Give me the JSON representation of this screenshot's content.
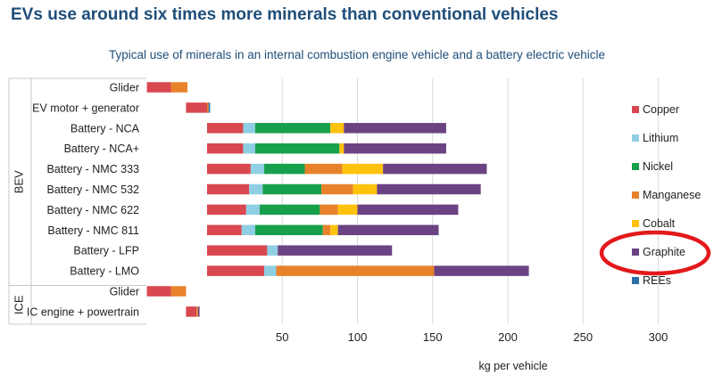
{
  "title": "EVs use around six times more minerals than conventional vehicles",
  "subtitle": "Typical use of minerals in an internal combustion engine vehicle and a battery electric vehicle",
  "chart_data": {
    "type": "bar",
    "orientation": "horizontal",
    "stacked": true,
    "title": "EVs use around six times more minerals than conventional vehicles",
    "subtitle": "Typical use of minerals in an internal combustion engine vehicle and a battery electric vehicle",
    "xlabel": "kg per vehicle",
    "ylabel": "",
    "xlim": [
      0,
      300
    ],
    "xticks": [
      50,
      100,
      150,
      200,
      250,
      300
    ],
    "grid": true,
    "legend_position": "right",
    "groups": [
      {
        "label": "BEV",
        "categories": [
          "Glider",
          "EV motor + generator",
          "Battery - NCA",
          "Battery - NCA+",
          "Battery - NMC 333",
          "Battery - NMC 532",
          "Battery - NMC 622",
          "Battery - NMC 811",
          "Battery - LFP",
          "Battery - LMO"
        ]
      },
      {
        "label": "ICE",
        "categories": [
          "Glider",
          "IC engine + powertrain"
        ]
      }
    ],
    "categories": [
      "Glider",
      "EV motor + generator",
      "Battery - NCA",
      "Battery - NCA+",
      "Battery - NMC 333",
      "Battery - NMC 532",
      "Battery - NMC 622",
      "Battery - NMC 811",
      "Battery - LFP",
      "Battery - LMO",
      "Glider",
      "IC engine + powertrain"
    ],
    "bar_offset": [
      -40,
      -14,
      0,
      0,
      0,
      0,
      0,
      0,
      0,
      0,
      -40,
      -14
    ],
    "series": [
      {
        "name": "Copper",
        "color": "#d9474f",
        "values": [
          16,
          14,
          24,
          24,
          29,
          28,
          26,
          23,
          40,
          38,
          16,
          7
        ]
      },
      {
        "name": "Lithium",
        "color": "#8fcfe3",
        "values": [
          0,
          0,
          8,
          8,
          9,
          9,
          9,
          9,
          7,
          8,
          0,
          0
        ]
      },
      {
        "name": "Nickel",
        "color": "#17a04b",
        "values": [
          0,
          0,
          50,
          56,
          27,
          39,
          40,
          45,
          0,
          0,
          0,
          0
        ]
      },
      {
        "name": "Manganese",
        "color": "#e8822a",
        "values": [
          11,
          1,
          0,
          0,
          25,
          21,
          12,
          5,
          0,
          105,
          10,
          1
        ]
      },
      {
        "name": "Cobalt",
        "color": "#fec20d",
        "values": [
          0,
          0,
          9,
          3,
          27,
          16,
          13,
          5,
          0,
          0,
          0,
          0
        ]
      },
      {
        "name": "Graphite",
        "color": "#6b4383",
        "values": [
          0,
          0,
          68,
          68,
          69,
          69,
          67,
          67,
          76,
          63,
          0,
          1
        ]
      },
      {
        "name": "REEs",
        "color": "#2e6fa6",
        "values": [
          0,
          1,
          0,
          0,
          0,
          0,
          0,
          0,
          0,
          0,
          0,
          0
        ]
      }
    ]
  }
}
